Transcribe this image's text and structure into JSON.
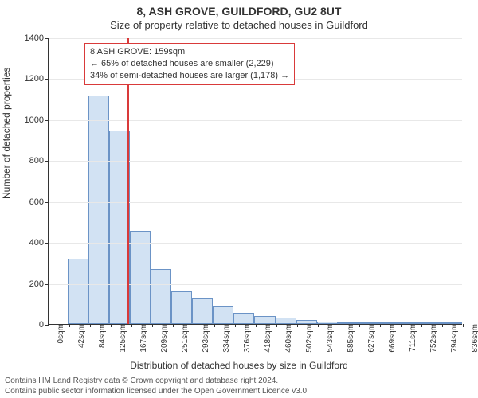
{
  "title": "8, ASH GROVE, GUILDFORD, GU2 8UT",
  "subtitle": "Size of property relative to detached houses in Guildford",
  "chart": {
    "type": "histogram",
    "ylabel": "Number of detached properties",
    "xlabel": "Distribution of detached houses by size in Guildford",
    "ylim": [
      0,
      1400
    ],
    "yticks": [
      0,
      200,
      400,
      600,
      800,
      1000,
      1200,
      1400
    ],
    "xticks": [
      "0sqm",
      "42sqm",
      "84sqm",
      "125sqm",
      "167sqm",
      "209sqm",
      "251sqm",
      "293sqm",
      "334sqm",
      "376sqm",
      "418sqm",
      "460sqm",
      "502sqm",
      "543sqm",
      "585sqm",
      "627sqm",
      "669sqm",
      "711sqm",
      "752sqm",
      "794sqm",
      "836sqm"
    ],
    "bar_fill": "#d2e2f3",
    "bar_stroke": "#6b93c6",
    "grid_color": "#e8e8e8",
    "axis_color": "#333333",
    "background": "#ffffff",
    "values": [
      0,
      320,
      1115,
      945,
      455,
      270,
      160,
      125,
      85,
      55,
      40,
      30,
      20,
      10,
      5,
      5,
      5,
      5,
      5,
      5
    ],
    "marker": {
      "value_sqm": 159,
      "max_sqm": 836,
      "color": "#d93a3a"
    },
    "annotation": {
      "line1": "8 ASH GROVE: 159sqm",
      "line2": "← 65% of detached houses are smaller (2,229)",
      "line3": "34% of semi-detached houses are larger (1,178) →",
      "border_color": "#d93a3a",
      "background": "#ffffff"
    }
  },
  "footer": {
    "line1": "Contains HM Land Registry data © Crown copyright and database right 2024.",
    "line2": "Contains public sector information licensed under the Open Government Licence v3.0."
  }
}
